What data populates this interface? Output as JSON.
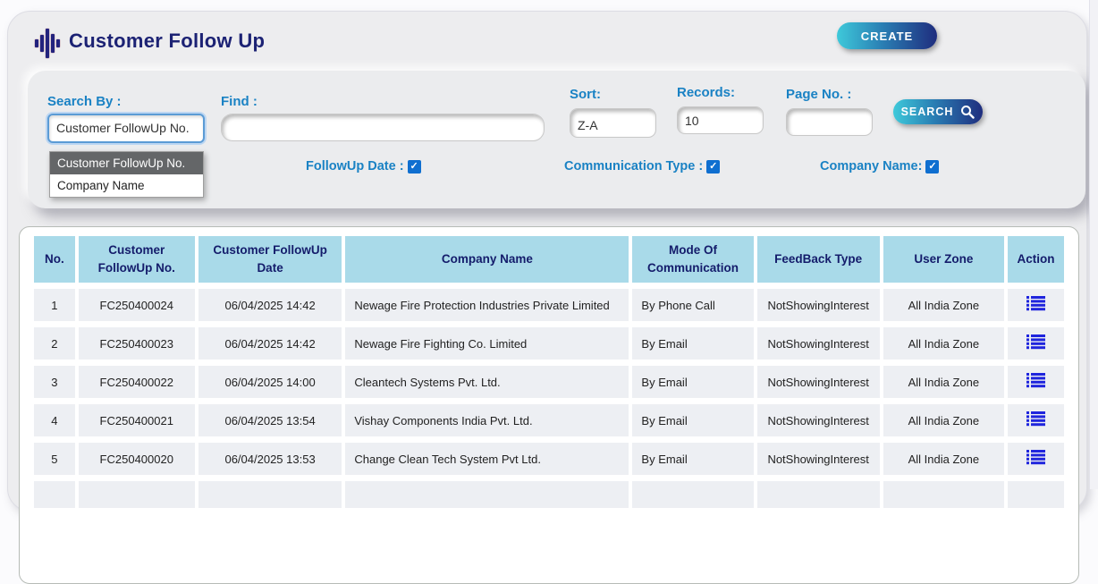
{
  "header": {
    "title": "Customer Follow Up",
    "create_label": "CREATE"
  },
  "search_panel": {
    "search_by": {
      "label": "Search By :",
      "value": "Customer FollowUp No.",
      "options": [
        "Customer FollowUp No.",
        "Company Name"
      ],
      "highlighted_option": "Customer FollowUp No."
    },
    "find": {
      "label": "Find :",
      "value": ""
    },
    "sort": {
      "label": "Sort:",
      "value": "Z-A"
    },
    "records": {
      "label": "Records:",
      "value": "10"
    },
    "page_no": {
      "label": "Page No. :",
      "value": ""
    },
    "search_button_label": "SEARCH",
    "checkboxes": [
      {
        "label": "FollowUp Date :",
        "checked": true
      },
      {
        "label": "Communication Type :",
        "checked": true
      },
      {
        "label": "Company Name:",
        "checked": true
      }
    ]
  },
  "table": {
    "columns": [
      "No.",
      "Customer FollowUp No.",
      "Customer FollowUp Date",
      "Company Name",
      "Mode Of Communication",
      "FeedBack Type",
      "User Zone",
      "Action"
    ],
    "rows": [
      {
        "no": "1",
        "followup_no": "FC250400024",
        "date": "06/04/2025 14:42",
        "company": "Newage Fire Protection Industries Private Limited",
        "mode": "By Phone Call",
        "feedback": "NotShowingInterest",
        "zone": "All India Zone"
      },
      {
        "no": "2",
        "followup_no": "FC250400023",
        "date": "06/04/2025 14:42",
        "company": "Newage Fire Fighting Co. Limited",
        "mode": "By Email",
        "feedback": "NotShowingInterest",
        "zone": "All India Zone"
      },
      {
        "no": "3",
        "followup_no": "FC250400022",
        "date": "06/04/2025 14:00",
        "company": "Cleantech Systems Pvt. Ltd.",
        "mode": "By Email",
        "feedback": "NotShowingInterest",
        "zone": "All India Zone"
      },
      {
        "no": "4",
        "followup_no": "FC250400021",
        "date": "06/04/2025 13:54",
        "company": "Vishay Components India Pvt. Ltd.",
        "mode": "By Email",
        "feedback": "NotShowingInterest",
        "zone": "All India Zone"
      },
      {
        "no": "5",
        "followup_no": "FC250400020",
        "date": "06/04/2025 13:53",
        "company": "Change Clean Tech System Pvt Ltd.",
        "mode": "By Email",
        "feedback": "NotShowingInterest",
        "zone": "All India Zone"
      }
    ]
  },
  "colors": {
    "accent_blue_label": "#1a82c4",
    "title_navy": "#1c2274",
    "header_cell_bg": "#a9dae9",
    "gradient_start": "#3ec9da",
    "gradient_end": "#1f2d7e",
    "action_icon_blue": "#1f25dd",
    "checkbox_blue": "#0f6fd0"
  }
}
